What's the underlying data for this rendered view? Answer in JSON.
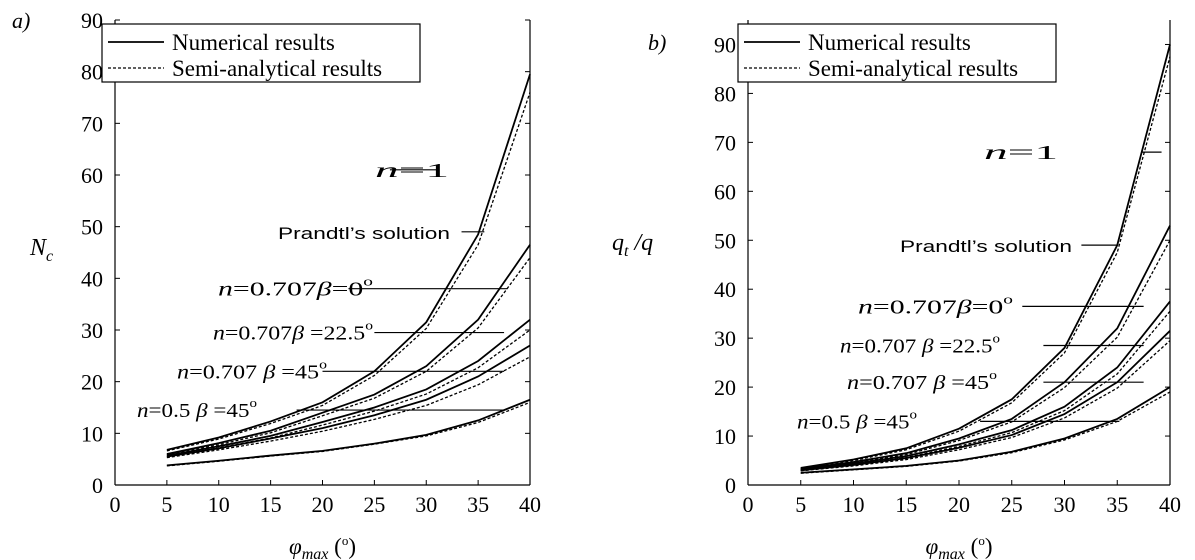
{
  "chart_data": [
    {
      "type": "line",
      "panel_label": "a)",
      "xlabel": "φmax (o)",
      "xlabel_parts": {
        "sym": "φ",
        "sub": "max",
        "unit_open": " (",
        "sup": "o",
        "unit_close": ")"
      },
      "ylabel": "Nc",
      "ylabel_parts": {
        "main": "N",
        "sub": "c"
      },
      "xlim": [
        0,
        40
      ],
      "ylim": [
        0,
        90
      ],
      "xticks": [
        0,
        5,
        10,
        15,
        20,
        25,
        30,
        35,
        40
      ],
      "yticks": [
        0,
        10,
        20,
        30,
        40,
        50,
        60,
        70,
        80,
        90
      ],
      "x": [
        5,
        10,
        15,
        20,
        25,
        30,
        35,
        40
      ],
      "legend": {
        "placement": "top-left",
        "entries": [
          {
            "label": "Numerical results",
            "style": "solid"
          },
          {
            "label": "Semi-analytical results",
            "style": "dashed"
          }
        ]
      },
      "series": [
        {
          "name": "n=1 numerical",
          "style": "solid",
          "values": [
            6.8,
            9.2,
            12.3,
            16.0,
            22.0,
            31.5,
            48.5,
            79.5
          ]
        },
        {
          "name": "n=1 semi-analytical",
          "style": "dashed",
          "values": [
            6.6,
            8.9,
            11.9,
            15.4,
            21.2,
            30.3,
            46.5,
            76.0
          ]
        },
        {
          "name": "Prandtl numerical",
          "style": "solid",
          "values": [
            6.0,
            8.1,
            10.5,
            14.0,
            17.5,
            23.0,
            32.0,
            46.5
          ]
        },
        {
          "name": "Prandtl semi-analytical",
          "style": "dashed",
          "values": [
            5.8,
            7.8,
            10.1,
            13.4,
            16.8,
            22.0,
            30.4,
            44.0
          ]
        },
        {
          "name": "n=0.707 β=0° numerical",
          "style": "solid",
          "values": [
            5.7,
            7.5,
            9.5,
            12.2,
            15.0,
            18.5,
            24.0,
            32.0
          ]
        },
        {
          "name": "n=0.707 β=0° semi-analytical",
          "style": "dashed",
          "values": [
            5.5,
            7.2,
            9.1,
            11.6,
            14.3,
            17.6,
            22.7,
            30.0
          ]
        },
        {
          "name": "n=0.707 β=22.5° numerical",
          "style": "solid",
          "values": [
            5.5,
            7.1,
            9.0,
            11.0,
            13.5,
            16.5,
            21.0,
            27.0
          ]
        },
        {
          "name": "n=0.707 β=22.5° semi-analytical",
          "style": "dashed",
          "values": [
            5.3,
            6.8,
            8.5,
            10.4,
            12.7,
            15.4,
            19.4,
            24.8
          ]
        },
        {
          "name": "n=0.5 β=45° numerical",
          "style": "solid",
          "values": [
            3.8,
            4.7,
            5.7,
            6.6,
            8.0,
            9.7,
            12.5,
            16.5
          ]
        },
        {
          "name": "n=0.5 β=45° semi-analytical",
          "style": "dashed",
          "values": [
            3.7,
            4.6,
            5.6,
            6.5,
            7.9,
            9.5,
            12.1,
            16.0
          ]
        }
      ],
      "annotations": [
        {
          "text": "n=1",
          "parts": [
            {
              "t": "n",
              "i": true
            },
            {
              "t": "=1"
            }
          ],
          "font": "serif",
          "line_y": 61,
          "line_x": [
            26.5,
            31
          ]
        },
        {
          "text": "Prandtl’s solution",
          "parts": [
            {
              "t": "Prandtl’s solution"
            }
          ],
          "font": "sans",
          "line_y": 49,
          "line_x": [
            33.4,
            35.6
          ]
        },
        {
          "text": "n=0.707β=0o",
          "parts": [
            {
              "t": "n",
              "i": true
            },
            {
              "t": "=0.707"
            },
            {
              "t": "β",
              "i": true
            },
            {
              "t": "=0"
            },
            {
              "t": "o",
              "sup": true
            }
          ],
          "font": "serif",
          "line_y": 38,
          "line_x": [
            22.5,
            37.8
          ]
        },
        {
          "text": "n=0.707β=22.5 o",
          "parts": [
            {
              "t": "n",
              "i": true
            },
            {
              "t": "=0.707"
            },
            {
              "t": "β",
              "i": true
            },
            {
              "t": " =22.5"
            },
            {
              "t": "o",
              "sup": true
            }
          ],
          "font": "serif",
          "line_y": 29.5,
          "line_x": [
            25,
            37.5
          ]
        },
        {
          "text": "n=0.707 β=45o",
          "parts": [
            {
              "t": "n",
              "i": true
            },
            {
              "t": "=0.707 "
            },
            {
              "t": "β",
              "i": true
            },
            {
              "t": " =45"
            },
            {
              "t": "o",
              "sup": true
            }
          ],
          "font": "serif",
          "line_y": 22,
          "line_x": [
            20,
            37.5
          ]
        },
        {
          "text": "n=0.5 β=45o",
          "parts": [
            {
              "t": "n",
              "i": true
            },
            {
              "t": "=0.5 "
            },
            {
              "t": "β",
              "i": true
            },
            {
              "t": " =45"
            },
            {
              "t": "o",
              "sup": true
            }
          ],
          "font": "serif",
          "line_y": 14.5,
          "line_x": [
            17.5,
            37.5
          ]
        }
      ]
    },
    {
      "type": "line",
      "panel_label": "b)",
      "xlabel": "φmax (o)",
      "xlabel_parts": {
        "sym": "φ",
        "sub": "max",
        "unit_open": " (",
        "sup": "o",
        "unit_close": ")"
      },
      "ylabel": "qt /q",
      "ylabel_parts": {
        "main": "q",
        "sub": "t",
        "rest": " /q"
      },
      "xlim": [
        0,
        40
      ],
      "ylim": [
        0,
        95
      ],
      "xticks": [
        0,
        5,
        10,
        15,
        20,
        25,
        30,
        35,
        40
      ],
      "yticks": [
        0,
        10,
        20,
        30,
        40,
        50,
        60,
        70,
        80,
        90
      ],
      "x": [
        5,
        10,
        15,
        20,
        25,
        30,
        35,
        40
      ],
      "legend": {
        "placement": "top-left",
        "entries": [
          {
            "label": "Numerical results",
            "style": "solid"
          },
          {
            "label": "Semi-analytical results",
            "style": "dashed"
          }
        ]
      },
      "series": [
        {
          "name": "n=1 numerical",
          "style": "solid",
          "values": [
            3.5,
            5.2,
            7.5,
            11.5,
            17.5,
            28.0,
            49.0,
            90.0
          ]
        },
        {
          "name": "n=1 semi-analytical",
          "style": "dashed",
          "values": [
            3.4,
            5.0,
            7.2,
            11.0,
            16.8,
            27.0,
            47.5,
            87.5
          ]
        },
        {
          "name": "Prandtl numerical",
          "style": "solid",
          "values": [
            3.3,
            4.7,
            6.5,
            9.5,
            13.5,
            21.0,
            32.0,
            53.0
          ]
        },
        {
          "name": "Prandtl semi-analytical",
          "style": "dashed",
          "values": [
            3.2,
            4.5,
            6.2,
            9.1,
            12.9,
            19.9,
            30.2,
            50.0
          ]
        },
        {
          "name": "n=0.707 β=0° numerical",
          "style": "solid",
          "values": [
            3.1,
            4.4,
            5.9,
            8.3,
            11.2,
            16.0,
            24.0,
            37.5
          ]
        },
        {
          "name": "n=0.707 β=0° semi-analytical",
          "style": "dashed",
          "values": [
            3.0,
            4.2,
            5.6,
            7.9,
            10.7,
            15.2,
            22.7,
            35.5
          ]
        },
        {
          "name": "n=0.707 β=22.5° numerical",
          "style": "solid",
          "values": [
            3.0,
            4.1,
            5.5,
            7.6,
            10.2,
            14.5,
            21.0,
            31.5
          ]
        },
        {
          "name": "n=0.707 β=22.5° semi-analytical",
          "style": "dashed",
          "values": [
            2.9,
            3.9,
            5.2,
            7.2,
            9.7,
            13.7,
            19.8,
            29.5
          ]
        },
        {
          "name": "n=0.5 β=45° numerical",
          "style": "solid",
          "values": [
            2.5,
            3.2,
            3.9,
            5.0,
            6.8,
            9.5,
            13.5,
            20.0
          ]
        },
        {
          "name": "n=0.5 β=45° semi-analytical",
          "style": "dashed",
          "values": [
            2.4,
            3.1,
            3.8,
            4.9,
            6.6,
            9.2,
            13.0,
            19.0
          ]
        }
      ],
      "annotations": [
        {
          "text": "n=1",
          "parts": [
            {
              "t": "n",
              "i": true
            },
            {
              "t": "=1"
            }
          ],
          "font": "serif",
          "line_y": 68,
          "line_x": [
            37.3,
            39.2
          ]
        },
        {
          "text": "Prandtl’s solution",
          "parts": [
            {
              "t": "Prandtl’s solution"
            }
          ],
          "font": "sans",
          "line_y": 49,
          "line_x": [
            31.6,
            35
          ]
        },
        {
          "text": "n=0.707β=0o",
          "parts": [
            {
              "t": "n",
              "i": true
            },
            {
              "t": "=0.707"
            },
            {
              "t": "β",
              "i": true
            },
            {
              "t": "=0"
            },
            {
              "t": "o",
              "sup": true
            }
          ],
          "font": "serif",
          "line_y": 36.5,
          "line_x": [
            26,
            37.5
          ]
        },
        {
          "text": "n=0.707 β=22.5o",
          "parts": [
            {
              "t": "n",
              "i": true
            },
            {
              "t": "=0.707 "
            },
            {
              "t": "β",
              "i": true
            },
            {
              "t": " =22.5"
            },
            {
              "t": "o",
              "sup": true
            }
          ],
          "font": "serif",
          "line_y": 28.5,
          "line_x": [
            28,
            37.5
          ]
        },
        {
          "text": "n=0.707 β=45o",
          "parts": [
            {
              "t": "n",
              "i": true
            },
            {
              "t": "=0.707 "
            },
            {
              "t": "β",
              "i": true
            },
            {
              "t": " =45"
            },
            {
              "t": "o",
              "sup": true
            }
          ],
          "font": "serif",
          "line_y": 21,
          "line_x": [
            28,
            37.5
          ]
        },
        {
          "text": "n=0.5 β=45o",
          "parts": [
            {
              "t": "n",
              "i": true
            },
            {
              "t": "=0.5 "
            },
            {
              "t": "β",
              "i": true
            },
            {
              "t": " =45"
            },
            {
              "t": "o",
              "sup": true
            }
          ],
          "font": "serif",
          "line_y": 13,
          "line_x": [
            22,
            35.2
          ]
        }
      ]
    }
  ]
}
